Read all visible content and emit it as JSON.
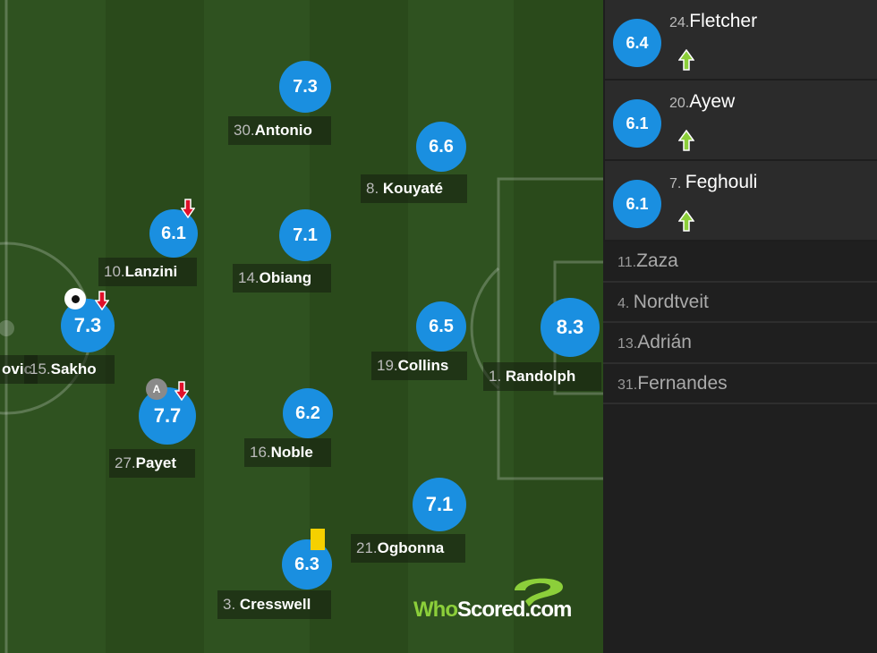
{
  "colors": {
    "rating": "#1a8fe0",
    "sub_arrow": "#8ccf3a",
    "off_arrow": "#e0102a",
    "yellow_card": "#f5d000"
  },
  "pitch_players": [
    {
      "num": "30.",
      "name": "Antonio",
      "rating": "7.3"
    },
    {
      "num": "8. ",
      "name": "Kouyaté",
      "rating": "6.6"
    },
    {
      "num": "10.",
      "name": "Lanzini",
      "rating": "6.1",
      "icons": [
        "sub-off-arrow-icon"
      ]
    },
    {
      "num": "14.",
      "name": "Obiang",
      "rating": "7.1"
    },
    {
      "num": "15.",
      "name": "Sakho",
      "rating": "7.3",
      "icons": [
        "goal-ball-icon",
        "sub-off-arrow-icon"
      ]
    },
    {
      "num": "19.",
      "name": "Collins",
      "rating": "6.5"
    },
    {
      "num": "1. ",
      "name": "Randolph",
      "rating": "8.3"
    },
    {
      "num": "27.",
      "name": "Payet",
      "rating": "7.7",
      "icons": [
        "assist-a-icon",
        "sub-off-arrow-icon"
      ]
    },
    {
      "num": "16.",
      "name": "Noble",
      "rating": "6.2"
    },
    {
      "num": "21.",
      "name": "Ogbonna",
      "rating": "7.1"
    },
    {
      "num": "3. ",
      "name": "Cresswell",
      "rating": "6.3",
      "icons": [
        "yellow-card-icon"
      ]
    }
  ],
  "cut_label": "ovic",
  "logo": {
    "who": "Who",
    "scored": "Scored",
    "dotcom": ".com"
  },
  "substitutes_used": [
    {
      "num": "24.",
      "name": "Fletcher",
      "rating": "6.4"
    },
    {
      "num": "20.",
      "name": "Ayew",
      "rating": "6.1"
    },
    {
      "num": "7. ",
      "name": "Feghouli",
      "rating": "6.1"
    }
  ],
  "bench": [
    {
      "num": "11.",
      "name": "Zaza"
    },
    {
      "num": "4. ",
      "name": "Nordtveit"
    },
    {
      "num": "13.",
      "name": "Adrián"
    },
    {
      "num": "31.",
      "name": "Fernandes"
    }
  ]
}
